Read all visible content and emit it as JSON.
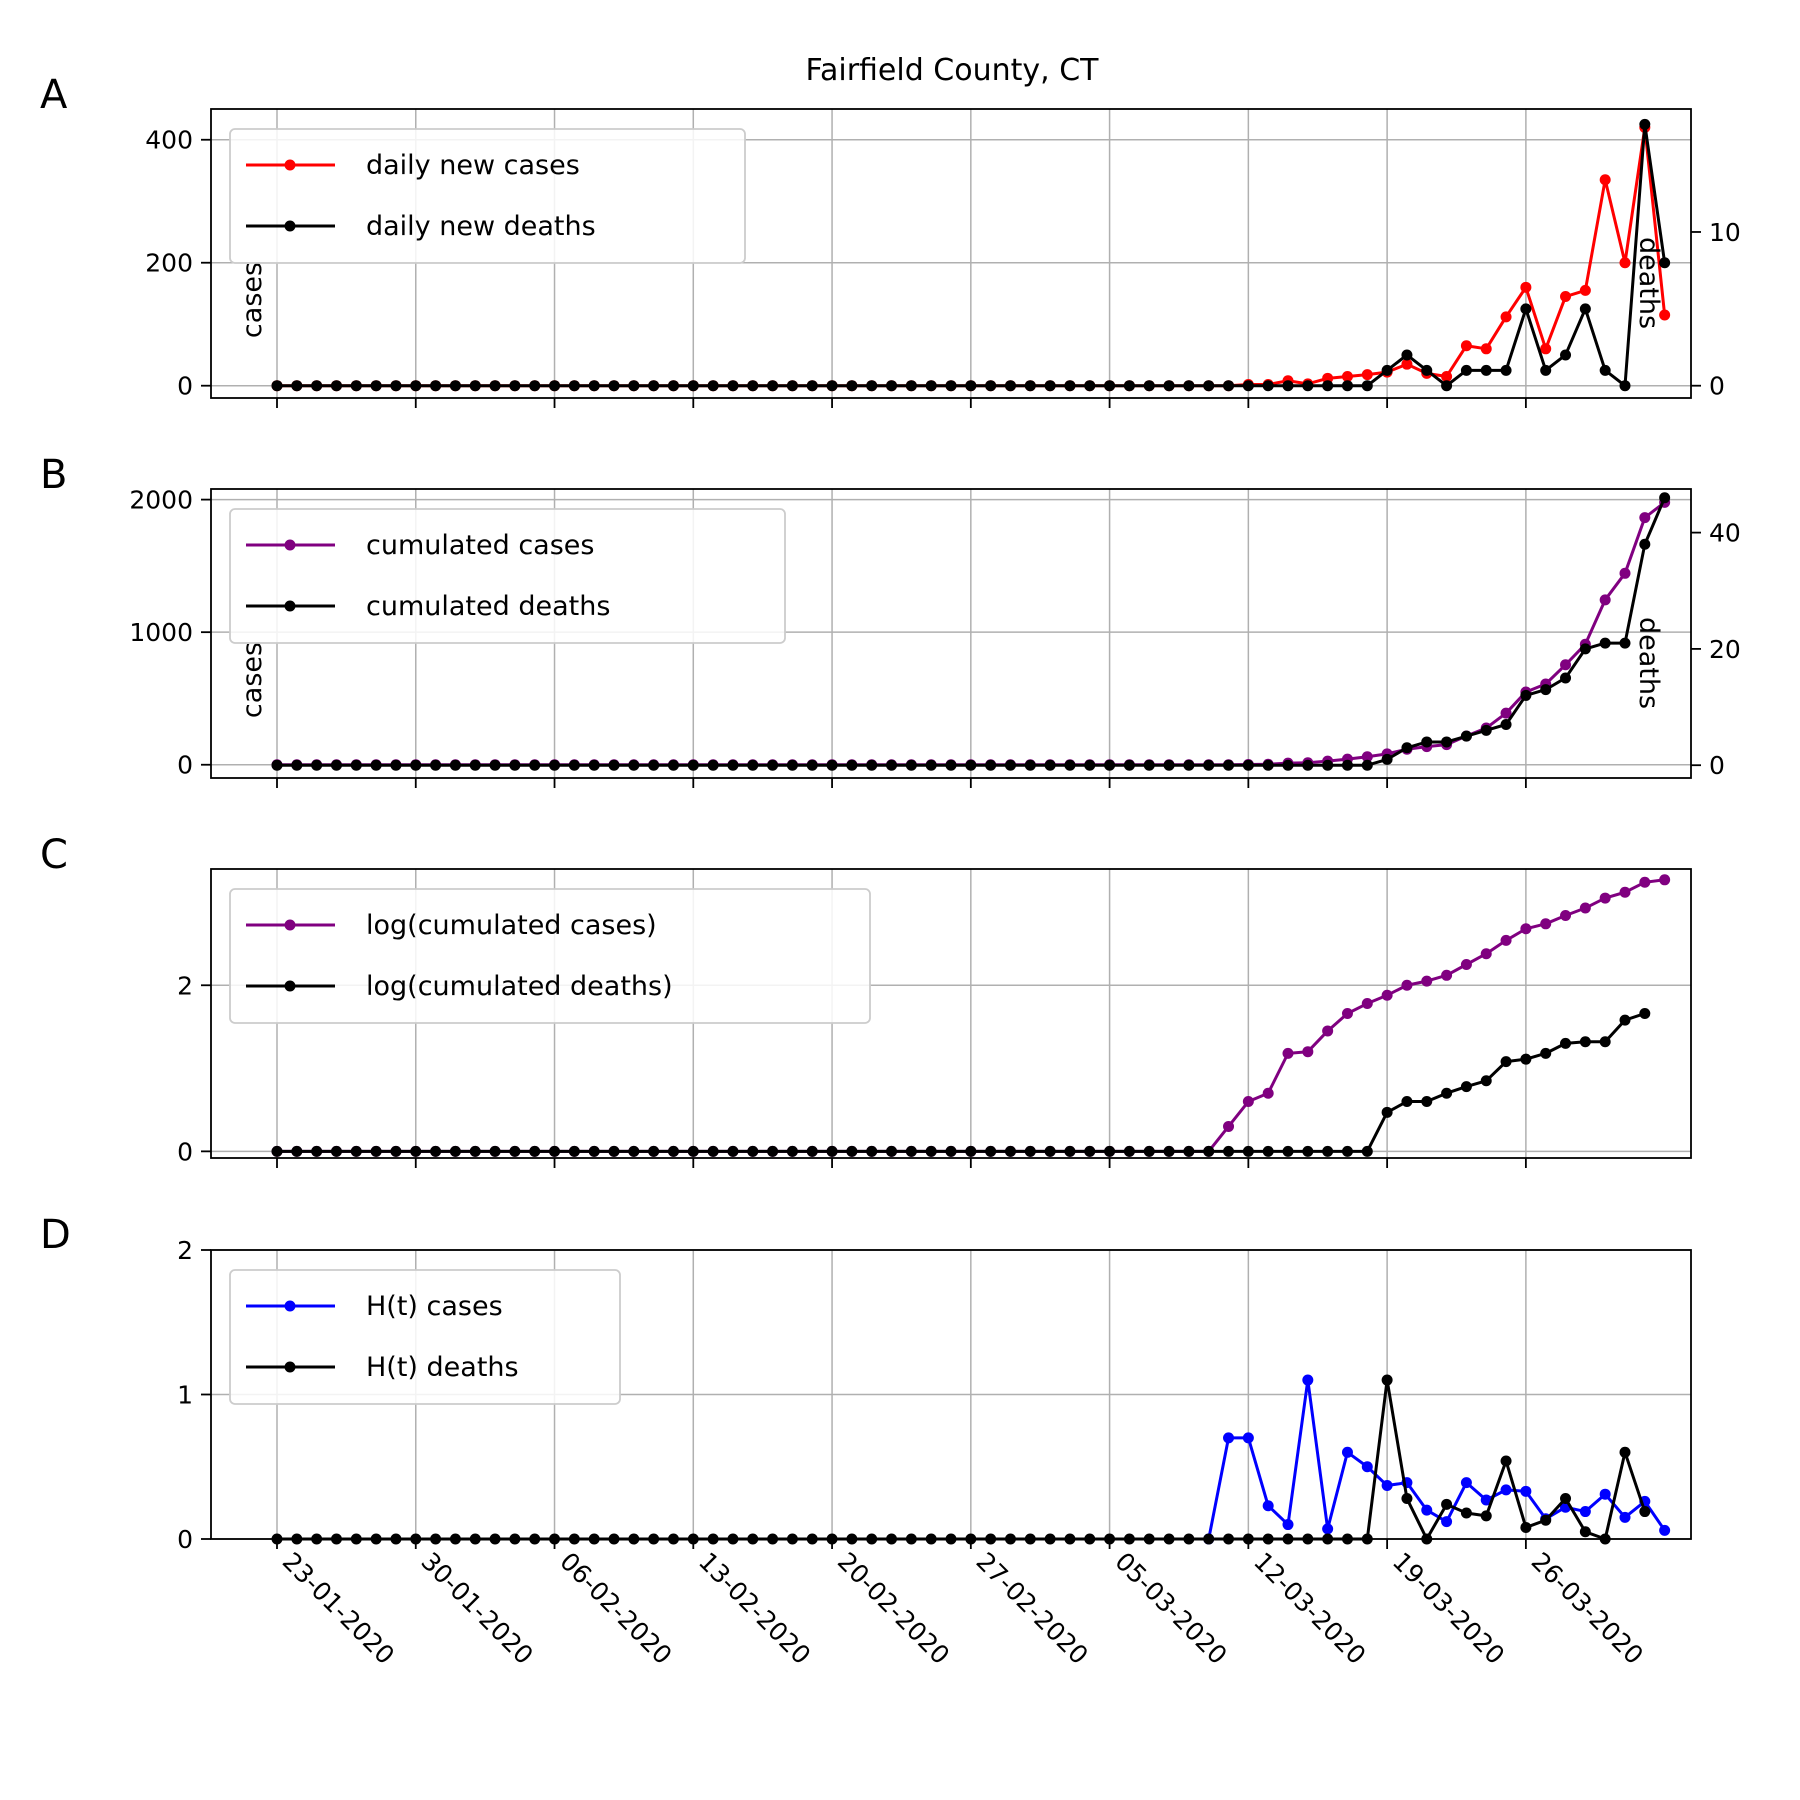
{
  "chart_data": {
    "type": "line",
    "title": "Fairfield County, CT",
    "x_tick_labels": [
      "23-01-2020",
      "30-01-2020",
      "06-02-2020",
      "13-02-2020",
      "20-02-2020",
      "27-02-2020",
      "05-03-2020",
      "12-03-2020",
      "19-03-2020",
      "26-03-2020"
    ],
    "x_start_date": "2020-01-23",
    "x_end_date": "2020-03-31",
    "grid": true,
    "panels": [
      {
        "letter": "A",
        "left_label": "cases",
        "right_label": "deaths",
        "left_ylim": [
          -20,
          450
        ],
        "right_ylim": [
          -0.8,
          18
        ],
        "left_ticks": [
          0,
          200,
          400
        ],
        "right_ticks": [
          0,
          10
        ],
        "legend": "upper left",
        "series": [
          {
            "name": "daily new cases",
            "axis": "left",
            "color": "#ff0000",
            "start": 0,
            "values": [
              0,
              0,
              0,
              0,
              0,
              0,
              0,
              0,
              0,
              0,
              0,
              0,
              0,
              0,
              0,
              0,
              0,
              0,
              0,
              0,
              0,
              0,
              0,
              0,
              0,
              0,
              0,
              0,
              0,
              0,
              0,
              0,
              0,
              0,
              0,
              0,
              0,
              0,
              0,
              0,
              0,
              0,
              0,
              0,
              0,
              0,
              0,
              0,
              0,
              2,
              2,
              8,
              3,
              12,
              15,
              18,
              22,
              35,
              20,
              15,
              65,
              60,
              112,
              160,
              60,
              145,
              155,
              335,
              200,
              420,
              115
            ]
          },
          {
            "name": "daily new deaths",
            "axis": "right",
            "color": "#000000",
            "start": 0,
            "values": [
              0,
              0,
              0,
              0,
              0,
              0,
              0,
              0,
              0,
              0,
              0,
              0,
              0,
              0,
              0,
              0,
              0,
              0,
              0,
              0,
              0,
              0,
              0,
              0,
              0,
              0,
              0,
              0,
              0,
              0,
              0,
              0,
              0,
              0,
              0,
              0,
              0,
              0,
              0,
              0,
              0,
              0,
              0,
              0,
              0,
              0,
              0,
              0,
              0,
              0,
              0,
              0,
              0,
              0,
              0,
              0,
              1,
              2,
              1,
              0,
              1,
              1,
              1,
              5,
              1,
              2,
              5,
              1,
              0,
              17,
              8
            ]
          }
        ]
      },
      {
        "letter": "B",
        "left_label": "cases",
        "right_label": "deaths",
        "left_ylim": [
          -100,
          2080
        ],
        "right_ylim": [
          -2.2,
          47.5
        ],
        "left_ticks": [
          0,
          1000,
          2000
        ],
        "right_ticks": [
          0,
          20,
          40
        ],
        "legend": "upper left",
        "series": [
          {
            "name": "cumulated cases",
            "axis": "left",
            "color": "#800080",
            "start": 0,
            "values": [
              0,
              0,
              0,
              0,
              0,
              0,
              0,
              0,
              0,
              0,
              0,
              0,
              0,
              0,
              0,
              0,
              0,
              0,
              0,
              0,
              0,
              0,
              0,
              0,
              0,
              0,
              0,
              0,
              0,
              0,
              0,
              0,
              0,
              0,
              0,
              0,
              0,
              0,
              0,
              0,
              0,
              0,
              0,
              0,
              0,
              0,
              0,
              0,
              0,
              2,
              4,
              12,
              15,
              27,
              42,
              60,
              82,
              117,
              137,
              152,
              217,
              277,
              389,
              549,
              609,
              754,
              909,
              1244,
              1444,
              1864,
              1979
            ]
          },
          {
            "name": "cumulated deaths",
            "axis": "right",
            "color": "#000000",
            "start": 0,
            "values": [
              0,
              0,
              0,
              0,
              0,
              0,
              0,
              0,
              0,
              0,
              0,
              0,
              0,
              0,
              0,
              0,
              0,
              0,
              0,
              0,
              0,
              0,
              0,
              0,
              0,
              0,
              0,
              0,
              0,
              0,
              0,
              0,
              0,
              0,
              0,
              0,
              0,
              0,
              0,
              0,
              0,
              0,
              0,
              0,
              0,
              0,
              0,
              0,
              0,
              0,
              0,
              0,
              0,
              0,
              0,
              0,
              1,
              3,
              4,
              4,
              5,
              6,
              7,
              12,
              13,
              15,
              20,
              21,
              21,
              38,
              46
            ]
          }
        ]
      },
      {
        "letter": "C",
        "left_ylim": [
          -0.08,
          3.4
        ],
        "left_ticks": [
          0,
          2
        ],
        "legend": "upper left",
        "series": [
          {
            "name": "log(cumulated cases)",
            "axis": "left",
            "color": "#800080",
            "start": 0,
            "values": [
              0,
              0,
              0,
              0,
              0,
              0,
              0,
              0,
              0,
              0,
              0,
              0,
              0,
              0,
              0,
              0,
              0,
              0,
              0,
              0,
              0,
              0,
              0,
              0,
              0,
              0,
              0,
              0,
              0,
              0,
              0,
              0,
              0,
              0,
              0,
              0,
              0,
              0,
              0,
              0,
              0,
              0,
              0,
              0,
              0,
              0,
              0,
              0,
              0.3,
              0.6,
              0.7,
              1.18,
              1.2,
              1.45,
              1.66,
              1.78,
              1.88,
              2.0,
              2.05,
              2.12,
              2.25,
              2.38,
              2.54,
              2.68,
              2.74,
              2.84,
              2.93,
              3.05,
              3.12,
              3.24,
              3.27
            ]
          },
          {
            "name": "log(cumulated deaths)",
            "axis": "left",
            "color": "#000000",
            "start": 0,
            "values": [
              0,
              0,
              0,
              0,
              0,
              0,
              0,
              0,
              0,
              0,
              0,
              0,
              0,
              0,
              0,
              0,
              0,
              0,
              0,
              0,
              0,
              0,
              0,
              0,
              0,
              0,
              0,
              0,
              0,
              0,
              0,
              0,
              0,
              0,
              0,
              0,
              0,
              0,
              0,
              0,
              0,
              0,
              0,
              0,
              0,
              0,
              0,
              0,
              0,
              0,
              0,
              0,
              0,
              0,
              0,
              0,
              0.47,
              0.6,
              0.6,
              0.7,
              0.78,
              0.85,
              1.08,
              1.11,
              1.18,
              1.3,
              1.32,
              1.32,
              1.58,
              1.66
            ]
          }
        ]
      },
      {
        "letter": "D",
        "left_ylim": [
          0,
          2
        ],
        "left_ticks": [
          0,
          1,
          2
        ],
        "legend": "upper left",
        "series": [
          {
            "name": "H(t) cases",
            "axis": "left",
            "color": "#0000ff",
            "start": 47,
            "values": [
              0,
              0.7,
              0.7,
              0.23,
              0.1,
              1.1,
              0.07,
              0.6,
              0.5,
              0.37,
              0.39,
              0.2,
              0.12,
              0.39,
              0.27,
              0.34,
              0.33,
              0.14,
              0.22,
              0.19,
              0.31,
              0.15,
              0.26,
              0.06
            ]
          },
          {
            "name": "H(t) deaths",
            "axis": "left",
            "color": "#000000",
            "start": 0,
            "values": [
              0,
              0,
              0,
              0,
              0,
              0,
              0,
              0,
              0,
              0,
              0,
              0,
              0,
              0,
              0,
              0,
              0,
              0,
              0,
              0,
              0,
              0,
              0,
              0,
              0,
              0,
              0,
              0,
              0,
              0,
              0,
              0,
              0,
              0,
              0,
              0,
              0,
              0,
              0,
              0,
              0,
              0,
              0,
              0,
              0,
              0,
              0,
              0,
              0,
              0,
              0,
              0,
              0,
              0,
              0,
              0,
              1.1,
              0.28,
              0,
              0.24,
              0.18,
              0.16,
              0.54,
              0.08,
              0.13,
              0.28,
              0.05,
              0,
              0.6,
              0.19
            ]
          }
        ]
      }
    ]
  }
}
